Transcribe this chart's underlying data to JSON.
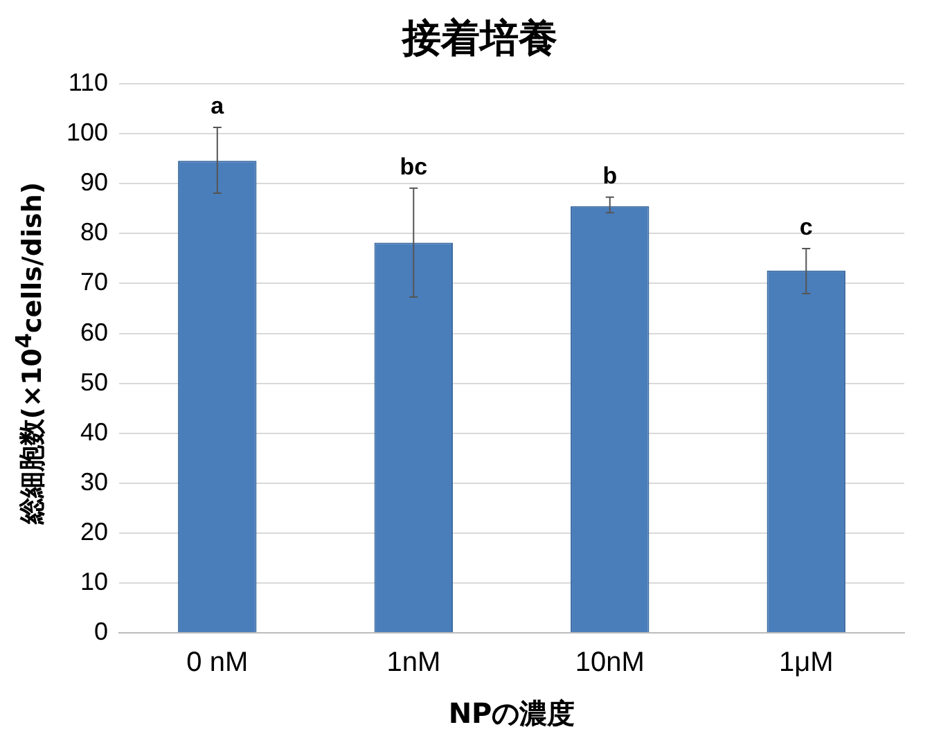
{
  "chart_data": {
    "type": "bar",
    "title": "接着培養",
    "xlabel": "NPの濃度",
    "ylabel": "総細胞数(×10$^{4}$cells/dish)",
    "categories": [
      "0 nM",
      "1nM",
      "10nM",
      "1μM"
    ],
    "values": [
      94.6,
      78.2,
      85.5,
      72.6
    ],
    "color": "#4a7ebb",
    "errors": [
      [
        88.1,
        101.3
      ],
      [
        67.3,
        89.1
      ],
      [
        84.2,
        87.3
      ],
      [
        68.0,
        77.0
      ]
    ],
    "ylim": [
      0,
      110
    ],
    "yticks": [
      0,
      10,
      20,
      30,
      40,
      50,
      60,
      70,
      80,
      90,
      100,
      110
    ],
    "grid": "y",
    "annotations": [
      {
        "text": "a",
        "x": "0 nM",
        "y": 101.3
      },
      {
        "text": "bc",
        "x": "1nM",
        "y": 89.1
      },
      {
        "text": "b",
        "x": "10nM",
        "y": 87.3
      },
      {
        "text": "c",
        "x": "1μM",
        "y": 77.0
      }
    ]
  }
}
